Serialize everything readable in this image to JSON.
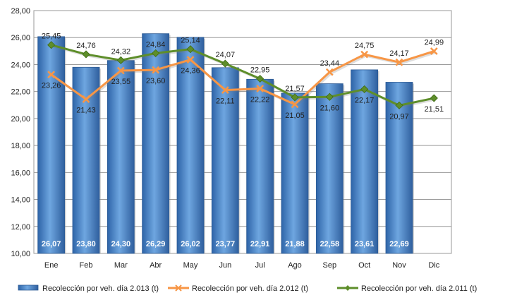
{
  "chart_data": {
    "type": "bar",
    "categories": [
      "Ene",
      "Feb",
      "Mar",
      "Abr",
      "May",
      "Jun",
      "Jul",
      "Ago",
      "Sep",
      "Oct",
      "Nov",
      "Dic"
    ],
    "ylim": [
      10,
      28
    ],
    "y_ticks": [
      "10,00",
      "12,00",
      "14,00",
      "16,00",
      "18,00",
      "20,00",
      "22,00",
      "24,00",
      "26,00",
      "28,00"
    ],
    "grid": true,
    "legend_position": "bottom",
    "series": [
      {
        "name": "Recolección por veh. día 2.013 (t)",
        "type": "bar",
        "color": "#4a86c8",
        "values": [
          26.07,
          23.8,
          24.3,
          26.29,
          26.02,
          23.77,
          22.91,
          21.88,
          22.58,
          23.61,
          22.69,
          null
        ],
        "labels": [
          "26,07",
          "23,80",
          "24,30",
          "26,29",
          "26,02",
          "23,77",
          "22,91",
          "21,88",
          "22,58",
          "23,61",
          "22,69",
          ""
        ]
      },
      {
        "name": "Recolección por veh. día 2.012 (t)",
        "type": "line",
        "color": "#f79646",
        "values": [
          23.26,
          21.43,
          23.55,
          23.6,
          24.36,
          22.11,
          22.22,
          21.05,
          23.44,
          24.75,
          24.17,
          24.99
        ],
        "labels": [
          "23,26",
          "21,43",
          "23,55",
          "23,60",
          "24,36",
          "22,11",
          "22,22",
          "21,05",
          "23,44",
          "24,75",
          "24,17",
          "24,99"
        ]
      },
      {
        "name": "Recolección por veh. día 2.011 (t)",
        "type": "line",
        "color": "#5e8e2a",
        "values": [
          25.45,
          24.76,
          24.32,
          24.84,
          25.14,
          24.07,
          22.95,
          21.57,
          21.6,
          22.17,
          20.97,
          21.51
        ],
        "labels": [
          "25,45",
          "24,76",
          "24,32",
          "24,84",
          "25,14",
          "24,07",
          "22,95",
          "21,57",
          "21,60",
          "22,17",
          "20,97",
          "21,51"
        ]
      }
    ]
  }
}
